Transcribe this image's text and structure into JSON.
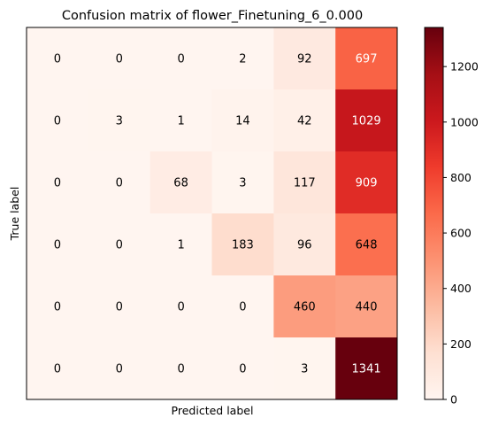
{
  "chart_data": {
    "type": "heatmap",
    "title": "Confusion matrix of flower_Finetuning_6_0.000",
    "xlabel": "Predicted label",
    "ylabel": "True label",
    "colormap": "Reds",
    "vmin": 0,
    "vmax": 1341,
    "matrix": [
      [
        0,
        0,
        0,
        2,
        92,
        697
      ],
      [
        0,
        3,
        1,
        14,
        42,
        1029
      ],
      [
        0,
        0,
        68,
        3,
        117,
        909
      ],
      [
        0,
        0,
        1,
        183,
        96,
        648
      ],
      [
        0,
        0,
        0,
        0,
        460,
        440
      ],
      [
        0,
        0,
        0,
        0,
        3,
        1341
      ]
    ],
    "colorbar_ticks": [
      0,
      200,
      400,
      600,
      800,
      1000,
      1200
    ]
  }
}
